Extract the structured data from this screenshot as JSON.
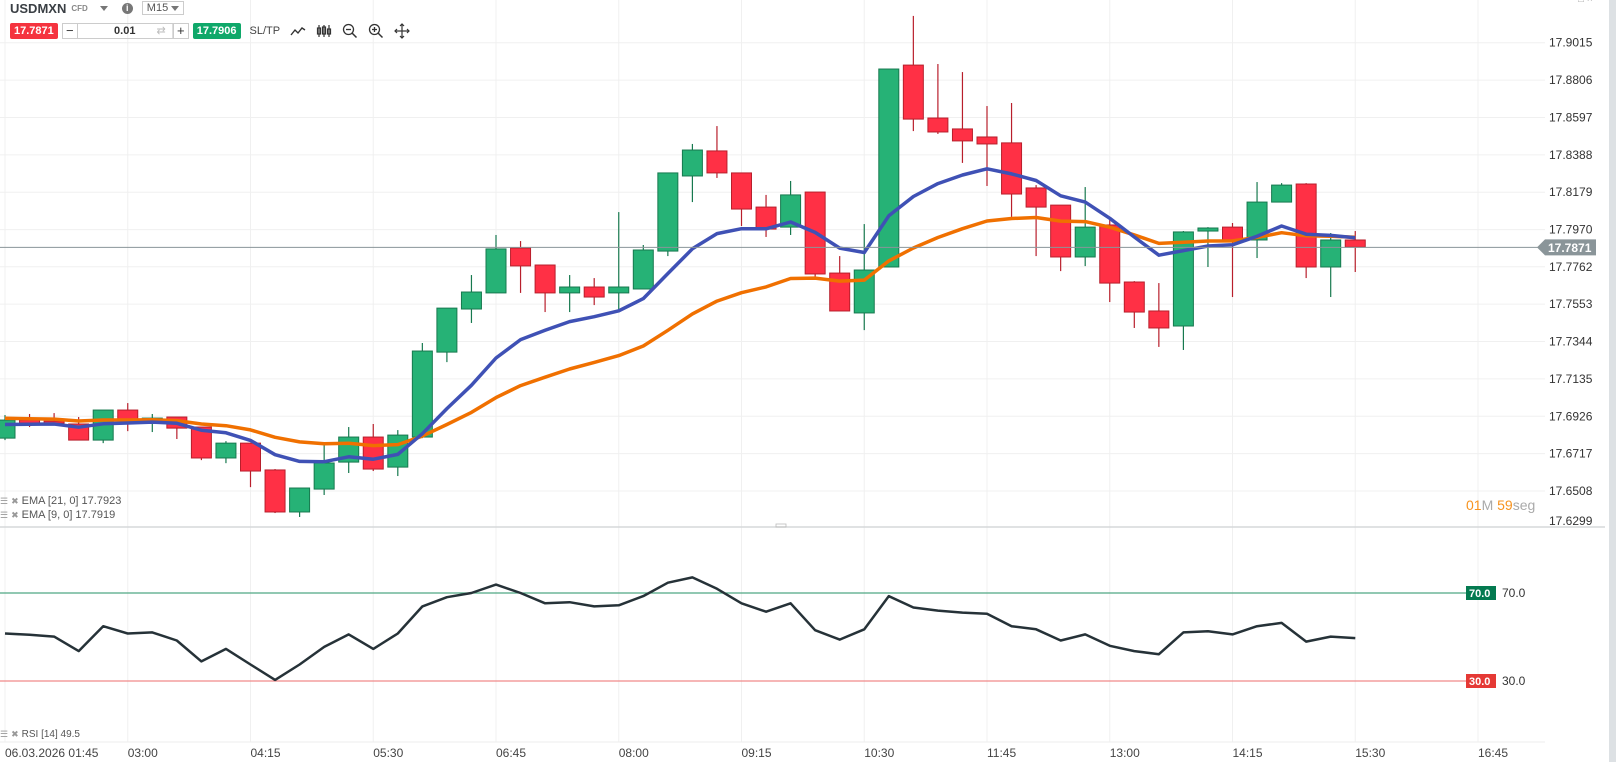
{
  "header": {
    "symbol": "USDMXN",
    "instrument_type": "CFD",
    "timeframe": "M15",
    "sell_price": "17.7871",
    "buy_price": "17.7906",
    "quantity": "0.01",
    "minus_label": "−",
    "plus_label": "+",
    "sltp_label": "SL/TP",
    "tools": [
      "line-chart-icon",
      "candlestick-icon",
      "zoom-out-icon",
      "zoom-in-icon",
      "move-icon"
    ]
  },
  "colors": {
    "bull": "#26b276",
    "bear": "#ff3045",
    "ema9": "#3f51b5",
    "ema21": "#f07000",
    "rsi": "#263238",
    "rsi_upper": "#047a50",
    "rsi_lower": "#e53935",
    "last_price": "#8a9599",
    "timer_accent": "#f7931e"
  },
  "legend": {
    "ema21": "EMA [21, 0] 17.7923",
    "ema9": "EMA [9, 0] 17.7919",
    "rsi": "RSI [14] 49.5"
  },
  "timer": {
    "minutes": "01",
    "m_unit": "M",
    "seconds": "59",
    "s_unit": "seg"
  },
  "chart_data": [
    {
      "type": "candlestick",
      "interval": "M15",
      "ylim": [
        17.6307,
        17.9254
      ],
      "grid": true,
      "last_price": 17.7871,
      "last_price_label": "17.7871",
      "y_ticks": [
        "17.9015",
        "17.8806",
        "17.8597",
        "17.8388",
        "17.8179",
        "17.7970",
        "17.7762",
        "17.7553",
        "17.7344",
        "17.7135",
        "17.6926",
        "17.6717",
        "17.6508",
        "17.6299"
      ],
      "x_labels": [
        {
          "candle": 0,
          "label": "06.03.2026 01:45"
        },
        {
          "candle": 5,
          "label": "03:00"
        },
        {
          "candle": 10,
          "label": "04:15"
        },
        {
          "candle": 15,
          "label": "05:30"
        },
        {
          "candle": 20,
          "label": "06:45"
        },
        {
          "candle": 25,
          "label": "08:00"
        },
        {
          "candle": 30,
          "label": "09:15"
        },
        {
          "candle": 35,
          "label": "10:30"
        },
        {
          "candle": 40,
          "label": "11:45"
        },
        {
          "candle": 45,
          "label": "13:00"
        },
        {
          "candle": 50,
          "label": "14:15"
        },
        {
          "candle": 55,
          "label": "15:30"
        },
        {
          "candle": 60,
          "label": "16:45"
        }
      ],
      "ohlc": [
        [
          17.6804,
          17.6933,
          17.6793,
          17.6905
        ],
        [
          17.6905,
          17.6939,
          17.6866,
          17.6888
        ],
        [
          17.6899,
          17.6944,
          17.6877,
          17.6888
        ],
        [
          17.6883,
          17.6922,
          17.6793,
          17.6793
        ],
        [
          17.6793,
          17.6961,
          17.6776,
          17.6961
        ],
        [
          17.6961,
          17.7,
          17.6843,
          17.6905
        ],
        [
          17.6905,
          17.6939,
          17.6838,
          17.6916
        ],
        [
          17.6922,
          17.6922,
          17.6799,
          17.686
        ],
        [
          17.6866,
          17.6866,
          17.6681,
          17.6693
        ],
        [
          17.6693,
          17.6787,
          17.6664,
          17.6776
        ],
        [
          17.6776,
          17.6776,
          17.653,
          17.662
        ],
        [
          17.6626,
          17.6631,
          17.6385,
          17.6391
        ],
        [
          17.6391,
          17.6525,
          17.6363,
          17.6525
        ],
        [
          17.6519,
          17.6782,
          17.6486,
          17.6665
        ],
        [
          17.667,
          17.6866,
          17.6609,
          17.681
        ],
        [
          17.681,
          17.6883,
          17.662,
          17.6631
        ],
        [
          17.6642,
          17.6849,
          17.6592,
          17.6821
        ],
        [
          17.681,
          17.7336,
          17.6804,
          17.7291
        ],
        [
          17.7285,
          17.7531,
          17.7229,
          17.7531
        ],
        [
          17.7526,
          17.7716,
          17.7448,
          17.7621
        ],
        [
          17.7616,
          17.794,
          17.7616,
          17.7862
        ],
        [
          17.7867,
          17.7906,
          17.7616,
          17.7767
        ],
        [
          17.7772,
          17.7772,
          17.7509,
          17.7616
        ],
        [
          17.7616,
          17.7716,
          17.7509,
          17.7649
        ],
        [
          17.7649,
          17.7699,
          17.7548,
          17.7593
        ],
        [
          17.7616,
          17.8068,
          17.752,
          17.7649
        ],
        [
          17.7638,
          17.7884,
          17.7638,
          17.7856
        ],
        [
          17.785,
          17.8287,
          17.7822,
          17.8287
        ],
        [
          17.827,
          17.8449,
          17.8124,
          17.8415
        ],
        [
          17.841,
          17.8549,
          17.8259,
          17.8287
        ],
        [
          17.8287,
          17.8287,
          17.799,
          17.8085
        ],
        [
          17.8096,
          17.8164,
          17.7929,
          17.7973
        ],
        [
          17.7984,
          17.8242,
          17.794,
          17.8164
        ],
        [
          17.818,
          17.818,
          17.7705,
          17.7722
        ],
        [
          17.7727,
          17.7822,
          17.7515,
          17.7515
        ],
        [
          17.7504,
          17.8001,
          17.7408,
          17.7744
        ],
        [
          17.7761,
          17.8868,
          17.7761,
          17.8868
        ],
        [
          17.889,
          17.9165,
          17.8521,
          17.8588
        ],
        [
          17.8594,
          17.8896,
          17.8505,
          17.8516
        ],
        [
          17.8533,
          17.8851,
          17.8343,
          17.8466
        ],
        [
          17.8488,
          17.8661,
          17.8214,
          17.8449
        ],
        [
          17.8455,
          17.8678,
          17.8041,
          17.8169
        ],
        [
          17.8203,
          17.8219,
          17.7822,
          17.8096
        ],
        [
          17.8107,
          17.8107,
          17.7738,
          17.7817
        ],
        [
          17.7817,
          17.8208,
          17.7766,
          17.7984
        ],
        [
          17.7996,
          17.8024,
          17.7565,
          17.7671
        ],
        [
          17.7677,
          17.7682,
          17.742,
          17.7509
        ],
        [
          17.7515,
          17.7671,
          17.7314,
          17.742
        ],
        [
          17.7431,
          17.7962,
          17.7297,
          17.7957
        ],
        [
          17.7962,
          17.7984,
          17.7761,
          17.7979
        ],
        [
          17.7984,
          17.8007,
          17.7593,
          17.7912
        ],
        [
          17.7912,
          17.8236,
          17.7811,
          17.8124
        ],
        [
          17.8124,
          17.823,
          17.8124,
          17.8219
        ],
        [
          17.8225,
          17.823,
          17.7699,
          17.7761
        ],
        [
          17.7761,
          17.7951,
          17.7593,
          17.7912
        ],
        [
          17.7912,
          17.7962,
          17.7733,
          17.7872
        ]
      ],
      "ema": [
        {
          "period": 9,
          "start": 17.688,
          "value": 17.7919
        },
        {
          "period": 21,
          "start": 17.6915,
          "value": 17.7923
        }
      ]
    },
    {
      "type": "line",
      "indicator": "RSI",
      "period": 14,
      "ylim": [
        0,
        100
      ],
      "levels": [
        {
          "value": 70,
          "label": "70.0"
        },
        {
          "value": 30,
          "label": "30.0"
        }
      ],
      "y_ticks": [
        "70.0",
        "30.0"
      ],
      "values": [
        51.6,
        51.0,
        50.2,
        43.6,
        54.9,
        51.6,
        52.1,
        48.4,
        38.9,
        44.6,
        37.5,
        30.5,
        37.5,
        45.5,
        51.2,
        44.6,
        51.6,
        63.9,
        68.1,
        70.0,
        73.8,
        70.0,
        65.3,
        65.8,
        63.9,
        64.4,
        68.6,
        74.7,
        77.1,
        71.9,
        65.3,
        61.5,
        65.3,
        53.1,
        48.8,
        53.5,
        68.6,
        63.4,
        62.0,
        61.1,
        60.6,
        54.9,
        53.5,
        48.4,
        51.2,
        46.0,
        43.6,
        42.2,
        52.1,
        52.6,
        51.2,
        54.9,
        56.4,
        47.9,
        50.2,
        49.5
      ]
    }
  ]
}
